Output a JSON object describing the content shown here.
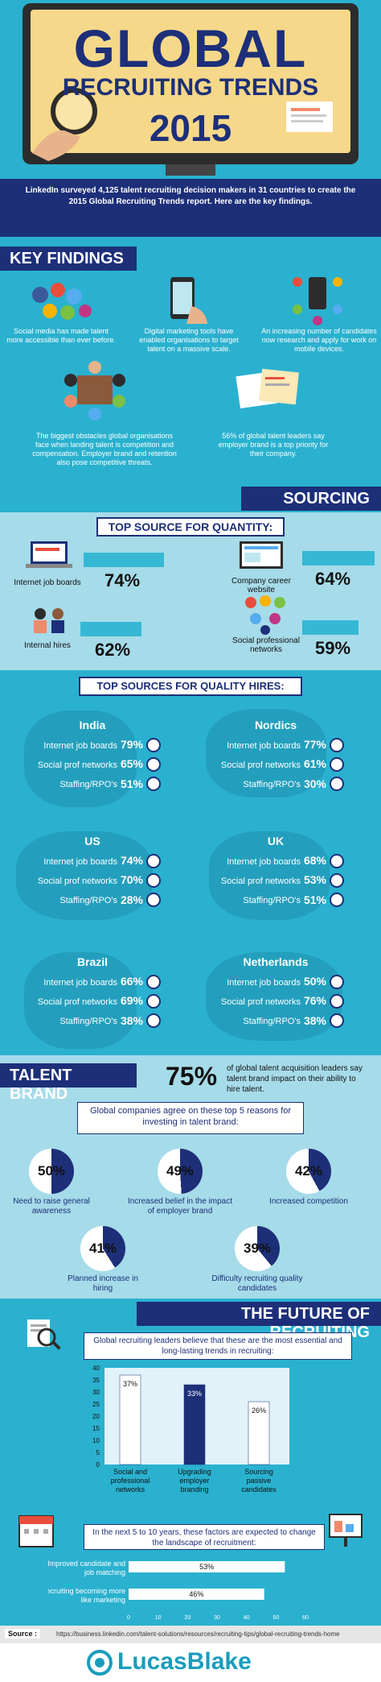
{
  "hero": {
    "title_main": "GLOBAL",
    "title_sub": "RECRUITING TRENDS",
    "title_year": "2015",
    "intro": "LinkedIn surveyed 4,125 talent recruiting decision makers in 31 countries to create the 2015 Global Recruiting Trends report. Here are the key findings."
  },
  "key_findings": {
    "heading": "KEY FINDINGS",
    "items": [
      {
        "icon": "social-media-icons-icon",
        "text": "Social media has made talent more accessible than ever before."
      },
      {
        "icon": "smartphone-hand-icon",
        "text": "Digital marketing tools have enabled organisations to target talent on a massive scale."
      },
      {
        "icon": "mobile-network-icon",
        "text": "An increasing number of candidates now research and apply for work on mobile devices."
      },
      {
        "icon": "meeting-table-icon",
        "text": "The biggest obstacles global organisations face when landing talent is competition and compensation. Employer brand and retention also pose competitive threats."
      },
      {
        "icon": "documents-icon",
        "text": "56% of global talent leaders say employer brand is a top priority for their company."
      }
    ]
  },
  "sourcing": {
    "heading": "SOURCING",
    "quantity_heading": "TOP SOURCE FOR QUANTITY:",
    "quantity": [
      {
        "label": "Internet job boards",
        "pct": "74%",
        "value": 74
      },
      {
        "label": "Company career website",
        "pct": "64%",
        "value": 64
      },
      {
        "label": "Internal hires",
        "pct": "62%",
        "value": 62
      },
      {
        "label": "Social professional networks",
        "pct": "59%",
        "value": 59
      }
    ]
  },
  "quality": {
    "heading": "TOP SOURCES FOR QUALITY HIRES:",
    "regions": [
      {
        "name": "India",
        "rows": [
          {
            "label": "Internet job boards",
            "pct": "79%"
          },
          {
            "label": "Social prof networks",
            "pct": "65%"
          },
          {
            "label": "Staffing/RPO's",
            "pct": "51%"
          }
        ]
      },
      {
        "name": "Nordics",
        "rows": [
          {
            "label": "Internet job boards",
            "pct": "77%"
          },
          {
            "label": "Social prof networks",
            "pct": "61%"
          },
          {
            "label": "Staffing/RPO's",
            "pct": "30%"
          }
        ]
      },
      {
        "name": "US",
        "rows": [
          {
            "label": "Internet job boards",
            "pct": "74%"
          },
          {
            "label": "Social prof networks",
            "pct": "70%"
          },
          {
            "label": "Staffing/RPO's",
            "pct": "28%"
          }
        ]
      },
      {
        "name": "UK",
        "rows": [
          {
            "label": "Internet job boards",
            "pct": "68%"
          },
          {
            "label": "Social prof networks",
            "pct": "53%"
          },
          {
            "label": "Staffing/RPO's",
            "pct": "51%"
          }
        ]
      },
      {
        "name": "Brazil",
        "rows": [
          {
            "label": "Internet job boards",
            "pct": "66%"
          },
          {
            "label": "Social prof networks",
            "pct": "69%"
          },
          {
            "label": "Staffing/RPO's",
            "pct": "38%"
          }
        ]
      },
      {
        "name": "Netherlands",
        "rows": [
          {
            "label": "Internet job boards",
            "pct": "50%"
          },
          {
            "label": "Social prof networks",
            "pct": "76%"
          },
          {
            "label": "Staffing/RPO's",
            "pct": "38%"
          }
        ]
      }
    ]
  },
  "talent_brand": {
    "heading": "TALENT BRAND",
    "stat": "75%",
    "stat_text": "of global talent acquisition leaders say talent brand impact on their ability to hire talent.",
    "reasons_heading": "Global companies agree on these top 5 reasons for investing in talent brand:",
    "reasons": [
      {
        "pct": "50%",
        "value": 50,
        "label": "Need to raise general awareness"
      },
      {
        "pct": "49%",
        "value": 49,
        "label": "Increased belief in the impact of employer brand"
      },
      {
        "pct": "42%",
        "value": 42,
        "label": "Increased competition"
      },
      {
        "pct": "41%",
        "value": 41,
        "label": "Planned increase in hiring"
      },
      {
        "pct": "39%",
        "value": 39,
        "label": "Difficulty recruiting quality candidates"
      }
    ]
  },
  "future": {
    "heading": "THE FUTURE OF RECRUITING",
    "chart1_heading": "Global recruiting leaders believe that these are the most essential and long-lasting trends in recruiting:",
    "chart2_heading": "In the next 5 to 10 years, these factors are expected to change the landscape of recruitment:"
  },
  "chart_data": [
    {
      "type": "bar",
      "categories": [
        "Social and professional networks",
        "Upgrading employer branding",
        "Sourcing passive candidates"
      ],
      "values": [
        37,
        33,
        26
      ],
      "labels": [
        "37%",
        "33%",
        "26%"
      ],
      "ylim": [
        0,
        40
      ],
      "yticks": [
        "0",
        "5",
        "10",
        "15",
        "20",
        "25",
        "30",
        "35",
        "40"
      ],
      "colors": [
        "#ffffff",
        "#1d2f79",
        "#ffffff"
      ]
    },
    {
      "type": "bar",
      "orientation": "horizontal",
      "categories": [
        "Improved candidate and job matching",
        "Recruiting becoming more like marketing"
      ],
      "values": [
        53,
        46
      ],
      "labels": [
        "53%",
        "46%"
      ],
      "xlim": [
        0,
        60
      ],
      "xticks": [
        "0",
        "10",
        "20",
        "30",
        "40",
        "50",
        "60"
      ]
    }
  ],
  "source": {
    "label": "Source :",
    "url": "https://business.linkedin.com/talent-solutions/resources/recruiting-tips/global-recruiting-trends-home"
  },
  "footer": {
    "brand": "LucasBlake"
  }
}
